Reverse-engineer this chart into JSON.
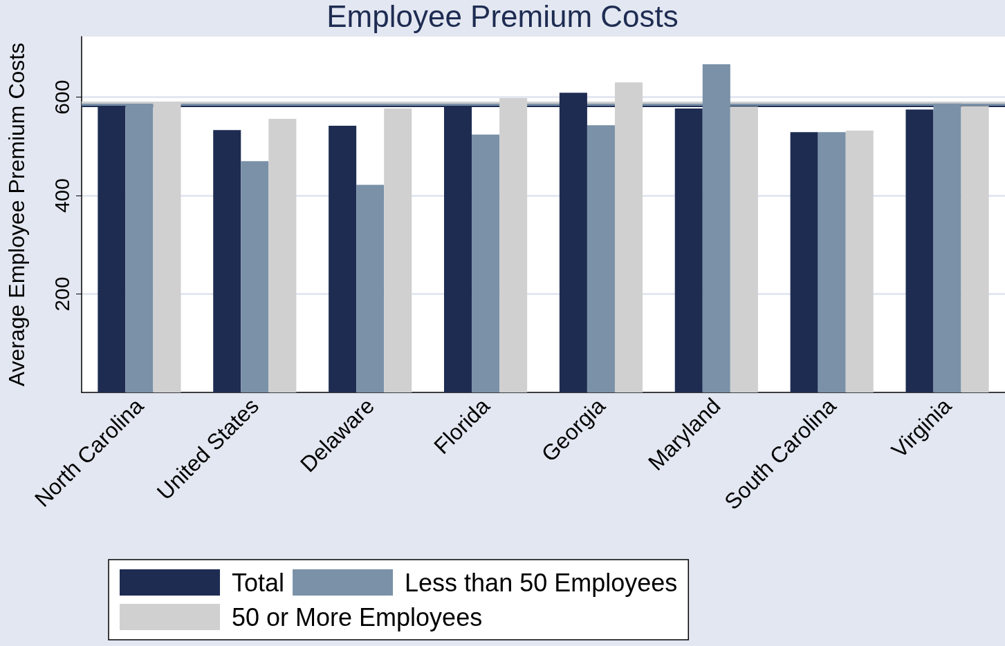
{
  "chart_data": {
    "type": "bar",
    "title": "Employee Premium Costs",
    "ylabel": "Average Employee Premium Costs",
    "categories": [
      "North Carolina",
      "United States",
      "Delaware",
      "Florida",
      "Georgia",
      "Maryland",
      "South Carolina",
      "Virginia"
    ],
    "series": [
      {
        "name": "Total",
        "color": "#1e2c52",
        "values": [
          582,
          533,
          542,
          582,
          609,
          577,
          529,
          575
        ]
      },
      {
        "name": "Less than 50 Employees",
        "color": "#7a91a8",
        "values": [
          585,
          470,
          422,
          524,
          543,
          667,
          529,
          587
        ]
      },
      {
        "name": "50 or More Employees",
        "color": "#d0d0d0",
        "values": [
          589,
          556,
          577,
          598,
          630,
          581,
          532,
          582
        ]
      }
    ],
    "ylim": [
      0,
      723
    ],
    "yticks": [
      200,
      400,
      600
    ],
    "grid": "y",
    "legend": "bottom",
    "ref_lines": [
      {
        "axis": "y",
        "value": 582,
        "color": "#1e2c52"
      },
      {
        "axis": "y",
        "value": 585,
        "color": "#7a91a8"
      },
      {
        "axis": "y",
        "value": 589,
        "color": "#d0d0d0"
      }
    ]
  }
}
